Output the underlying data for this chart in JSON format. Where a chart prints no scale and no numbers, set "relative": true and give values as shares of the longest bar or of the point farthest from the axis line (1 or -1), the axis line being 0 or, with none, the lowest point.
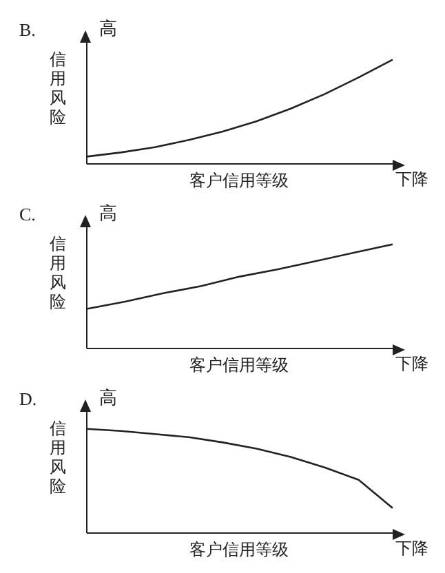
{
  "chart_data": [
    {
      "type": "line",
      "title": "B.",
      "xlabel": "客户信用等级",
      "ylabel": "信用风险",
      "annotations": [
        "高",
        "下降"
      ],
      "relative": true,
      "color": "#222222",
      "categories": [
        null,
        null,
        null,
        null,
        null,
        null,
        null,
        null,
        null,
        null
      ],
      "values": [
        0.07,
        0.11,
        0.16,
        0.23,
        0.31,
        0.41,
        0.53,
        0.67,
        0.83,
        1
      ]
    },
    {
      "type": "line",
      "title": "C.",
      "xlabel": "客户信用等级",
      "ylabel": "信用风险",
      "annotations": [
        "高",
        "下降"
      ],
      "relative": true,
      "color": "#222222",
      "categories": [
        null,
        null,
        null,
        null,
        null,
        null,
        null,
        null,
        null
      ],
      "values": [
        0.38,
        0.45,
        0.53,
        0.6,
        0.69,
        0.76,
        0.84,
        0.92,
        1
      ]
    },
    {
      "type": "line",
      "title": "D.",
      "xlabel": "客户信用等级",
      "ylabel": "信用风险",
      "annotations": [
        "高",
        "下降"
      ],
      "relative": true,
      "color": "#222222",
      "categories": [
        null,
        null,
        null,
        null,
        null,
        null,
        null,
        null,
        null,
        null
      ],
      "values": [
        1,
        0.98,
        0.95,
        0.92,
        0.87,
        0.81,
        0.73,
        0.63,
        0.51,
        0.24
      ]
    }
  ]
}
